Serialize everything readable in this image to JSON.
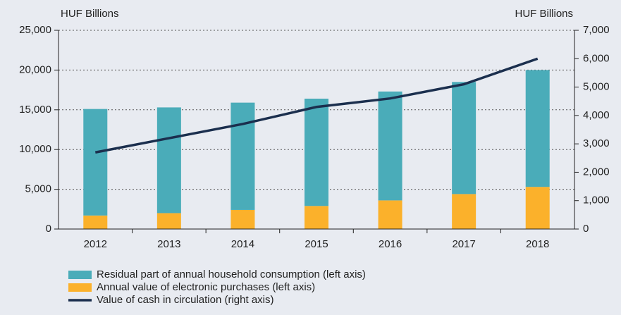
{
  "chart_data": {
    "type": "bar",
    "stacked": true,
    "y_label": "HUF Billions",
    "y2_label": "HUF Billions",
    "categories": [
      "2012",
      "2013",
      "2014",
      "2015",
      "2016",
      "2017",
      "2018"
    ],
    "series": [
      {
        "name": "Residual part of annual household consumption (left axis)",
        "color": "#4aacb9",
        "type": "bar",
        "values": [
          13400,
          13300,
          13500,
          13500,
          13700,
          14100,
          14700
        ]
      },
      {
        "name": "Annual value of electronic purchases (left axis)",
        "color": "#fbb12b",
        "type": "bar",
        "values": [
          1700,
          2000,
          2400,
          2900,
          3600,
          4400,
          5300
        ]
      },
      {
        "name": "Value of cash in circulation (right axis)",
        "color": "#1b2f4e",
        "type": "line",
        "axis": "y2",
        "values": [
          2700,
          3200,
          3700,
          4300,
          4600,
          5100,
          6000
        ]
      }
    ],
    "ylim": [
      0,
      25000
    ],
    "yticks": [
      0,
      {
        "value": 5000,
        "label": "5,000"
      },
      {
        "value": 10000,
        "label": "10,000"
      },
      {
        "value": 15000,
        "label": "15,000"
      },
      {
        "value": 20000,
        "label": "20,000"
      },
      {
        "value": 25000,
        "label": "25,000"
      }
    ],
    "y2lim": [
      0,
      7000
    ],
    "y2ticks": [
      0,
      {
        "value": 1000,
        "label": "1,000"
      },
      {
        "value": 2000,
        "label": "2,000"
      },
      {
        "value": 3000,
        "label": "3,000"
      },
      {
        "value": 4000,
        "label": "4,000"
      },
      {
        "value": 5000,
        "label": "5,000"
      },
      {
        "value": 6000,
        "label": "6,000"
      },
      {
        "value": 7000,
        "label": "7,000"
      }
    ],
    "grid": true
  }
}
